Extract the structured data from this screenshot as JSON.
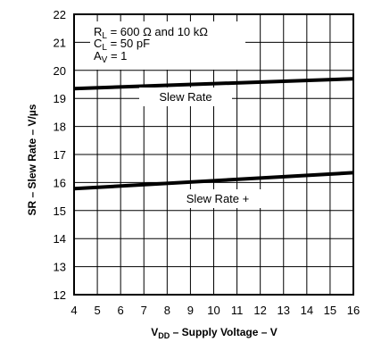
{
  "chart_data": {
    "type": "line",
    "xlabel": {
      "main": "V",
      "sub": "DD",
      "rest": " – Supply Voltage – V"
    },
    "ylabel": "SR  – Slew Rate – V/µs",
    "xlim": [
      4,
      16
    ],
    "ylim": [
      12,
      22
    ],
    "xticks": [
      "4",
      "5",
      "6",
      "7",
      "8",
      "9",
      "10",
      "11",
      "12",
      "13",
      "14",
      "15",
      "16"
    ],
    "yticks": [
      "12",
      "13",
      "14",
      "15",
      "16",
      "17",
      "18",
      "19",
      "20",
      "21",
      "22"
    ],
    "grid": true,
    "conditions": [
      {
        "main": "R",
        "sub": "L",
        "rest": " = 600 Ω and 10 kΩ"
      },
      {
        "main": "C",
        "sub": "L",
        "rest": " = 50 pF"
      },
      {
        "main": "A",
        "sub": "V",
        "rest": " = 1"
      }
    ],
    "series": [
      {
        "name": "Slew Rate",
        "x": [
          4,
          16
        ],
        "y": [
          19.35,
          19.7
        ]
      },
      {
        "name": "Slew Rate +",
        "x": [
          4,
          16
        ],
        "y": [
          15.78,
          16.35
        ]
      }
    ]
  }
}
